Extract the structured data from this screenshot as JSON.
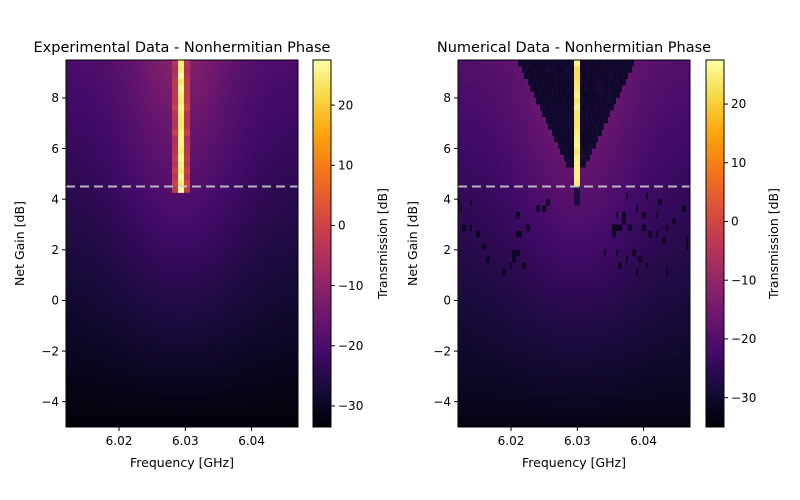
{
  "figure": {
    "colormap": "inferno"
  },
  "chart_data": [
    {
      "type": "heatmap",
      "title": "Experimental Data - Nonhermitian Phase",
      "xlabel": "Frequency [GHz]",
      "ylabel": "Net Gain [dB]",
      "xlim": [
        6.012,
        6.047
      ],
      "ylim": [
        -5.0,
        9.5
      ],
      "xticks": [
        6.02,
        6.03,
        6.04
      ],
      "xtick_labels": [
        "6.02",
        "6.03",
        "6.04"
      ],
      "yticks": [
        -4,
        -2,
        0,
        2,
        4,
        6,
        8
      ],
      "ytick_labels": [
        "−4",
        "−2",
        "0",
        "2",
        "4",
        "6",
        "8"
      ],
      "colorbar_label": "Transmission [dB]",
      "colorbar_range": [
        -33.5,
        27.5
      ],
      "colorbar_ticks": [
        -30,
        -20,
        -10,
        0,
        10,
        20
      ],
      "colorbar_tick_labels": [
        "−30",
        "−20",
        "−10",
        "0",
        "10",
        "20"
      ],
      "reference_line": {
        "net_gain_db": 4.5,
        "style": "dashed",
        "color": "#cccccc"
      },
      "features": {
        "resonance_center_ghz": 6.0293,
        "bright_line_from_db": 4.3,
        "peak_db": 27,
        "background_min_db": -33,
        "background_max_db": -18
      },
      "grid": false
    },
    {
      "type": "heatmap",
      "title": "Numerical Data - Nonhermitian Phase",
      "xlabel": "Frequency [GHz]",
      "ylabel": "Net Gain [dB]",
      "xlim": [
        6.012,
        6.047
      ],
      "ylim": [
        -5.0,
        9.5
      ],
      "xticks": [
        6.02,
        6.03,
        6.04
      ],
      "xtick_labels": [
        "6.02",
        "6.03",
        "6.04"
      ],
      "yticks": [
        -4,
        -2,
        0,
        2,
        4,
        6,
        8
      ],
      "ytick_labels": [
        "−4",
        "−2",
        "0",
        "2",
        "4",
        "6",
        "8"
      ],
      "colorbar_label": "Transmission [dB]",
      "colorbar_range": [
        -35.0,
        27.5
      ],
      "colorbar_ticks": [
        -30,
        -20,
        -10,
        0,
        10,
        20
      ],
      "colorbar_tick_labels": [
        "−30",
        "−20",
        "−10",
        "0",
        "10",
        "20"
      ],
      "reference_line": {
        "net_gain_db": 4.5,
        "style": "dashed",
        "color": "#cccccc"
      },
      "features": {
        "resonance_center_ghz": 6.0299,
        "bright_line_from_db": 3.9,
        "peak_db": 27,
        "dark_funnel_from_db": 5.2,
        "background_min_db": -35,
        "background_max_db": -18
      },
      "grid": false
    }
  ]
}
